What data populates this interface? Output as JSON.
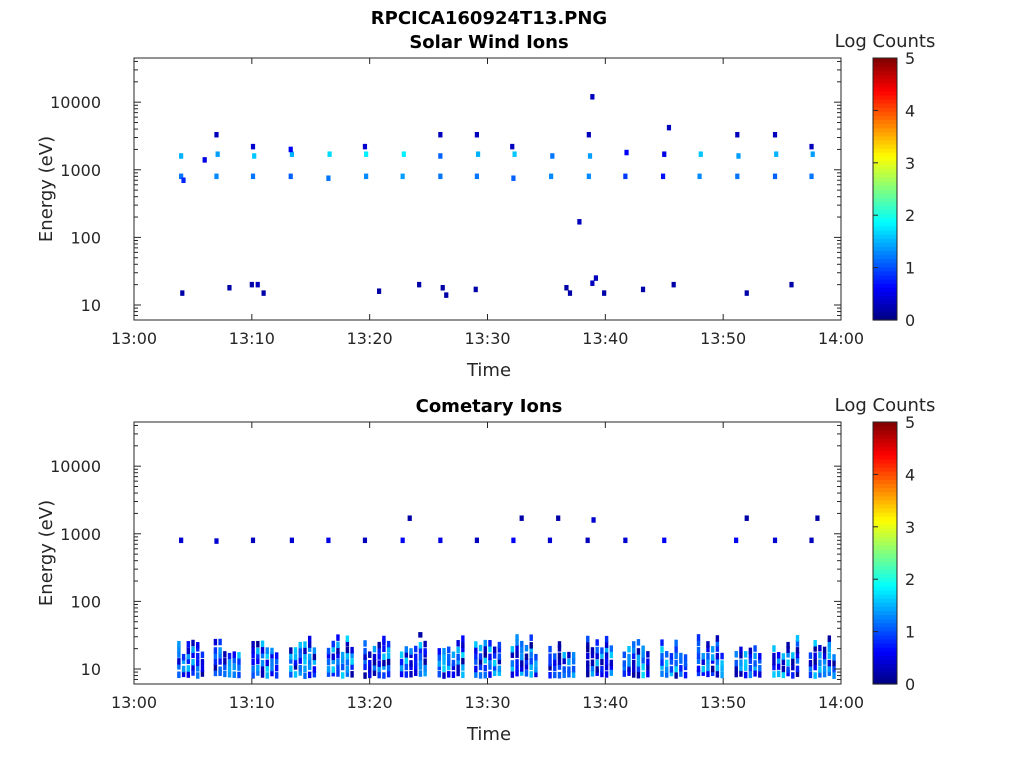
{
  "figure_title": "RPCICA160924T13.PNG",
  "colors": {
    "colormap": [
      "#00007f",
      "#0000ff",
      "#007fff",
      "#00ffff",
      "#7fff7f",
      "#ffff00",
      "#ff7f00",
      "#ff0000",
      "#7f0000"
    ],
    "axes": "#262626"
  },
  "chart_data": [
    {
      "type": "heatmap",
      "title": "Solar Wind Ions",
      "xlabel": "Time",
      "ylabel": "Energy (eV)",
      "x_ticks": [
        "13:00",
        "13:10",
        "13:20",
        "13:30",
        "13:40",
        "13:50",
        "14:00"
      ],
      "xlim_minutes": [
        0,
        60
      ],
      "y_ticks": [
        "10",
        "100",
        "1000",
        "10000"
      ],
      "ylim": [
        6,
        45000
      ],
      "y_scale": "log",
      "colorbar": {
        "label": "Log Counts",
        "ticks": [
          "0",
          "1",
          "2",
          "3",
          "4",
          "5"
        ],
        "range": [
          0,
          5
        ]
      },
      "bursts_minutes": [
        3.8,
        6.9,
        10.1,
        13.3,
        16.5,
        19.6,
        22.7,
        25.9,
        29.0,
        32.1,
        35.3,
        38.5,
        41.6,
        44.8,
        47.9,
        51.1,
        54.3,
        57.4
      ],
      "cells": [
        [
          4.0,
          800,
          1.2
        ],
        [
          4.2,
          700,
          0.8
        ],
        [
          4.0,
          1600,
          1.5
        ],
        [
          7.0,
          800,
          1.3
        ],
        [
          7.1,
          1700,
          1.4
        ],
        [
          7.0,
          3300,
          0.3
        ],
        [
          6.0,
          1400,
          0.5
        ],
        [
          10.1,
          800,
          1.2
        ],
        [
          10.2,
          1600,
          1.6
        ],
        [
          10.1,
          2200,
          0.4
        ],
        [
          13.3,
          800,
          1.1
        ],
        [
          13.4,
          1700,
          1.5
        ],
        [
          13.3,
          2000,
          0.6
        ],
        [
          16.5,
          750,
          1.2
        ],
        [
          16.6,
          1700,
          1.7
        ],
        [
          19.7,
          800,
          1.3
        ],
        [
          19.7,
          1700,
          1.8
        ],
        [
          19.6,
          2200,
          0.4
        ],
        [
          22.8,
          800,
          1.4
        ],
        [
          22.9,
          1700,
          1.8
        ],
        [
          26.0,
          800,
          1.2
        ],
        [
          26.0,
          1600,
          1.1
        ],
        [
          26.0,
          3300,
          0.3
        ],
        [
          29.1,
          800,
          1.2
        ],
        [
          29.2,
          1700,
          1.5
        ],
        [
          29.1,
          3300,
          0.3
        ],
        [
          32.2,
          750,
          1.1
        ],
        [
          32.3,
          1700,
          1.6
        ],
        [
          32.1,
          2200,
          0.3
        ],
        [
          35.4,
          800,
          1.3
        ],
        [
          35.5,
          1600,
          1.2
        ],
        [
          38.6,
          800,
          1.3
        ],
        [
          38.7,
          1600,
          1.4
        ],
        [
          38.6,
          3300,
          0.3
        ],
        [
          38.9,
          12000,
          0.3
        ],
        [
          41.7,
          800,
          0.9
        ],
        [
          41.8,
          1800,
          0.6
        ],
        [
          44.9,
          800,
          0.7
        ],
        [
          45.0,
          1700,
          0.5
        ],
        [
          45.4,
          4200,
          0.3
        ],
        [
          48.0,
          800,
          1.3
        ],
        [
          48.1,
          1700,
          1.6
        ],
        [
          51.2,
          800,
          1.2
        ],
        [
          51.3,
          1600,
          1.4
        ],
        [
          51.2,
          3300,
          0.3
        ],
        [
          54.4,
          800,
          1.1
        ],
        [
          54.5,
          1700,
          1.5
        ],
        [
          54.4,
          3300,
          0.3
        ],
        [
          57.5,
          800,
          1.2
        ],
        [
          57.6,
          1700,
          1.4
        ],
        [
          57.5,
          2200,
          0.3
        ],
        [
          37.8,
          170,
          0.3
        ],
        [
          4.1,
          15,
          0.2
        ],
        [
          8.1,
          18,
          0.2
        ],
        [
          10.0,
          20,
          0.2
        ],
        [
          10.5,
          20,
          0.3
        ],
        [
          11.0,
          15,
          0.2
        ],
        [
          20.8,
          16,
          0.2
        ],
        [
          24.2,
          20,
          0.2
        ],
        [
          26.2,
          18,
          0.2
        ],
        [
          26.5,
          14,
          0.2
        ],
        [
          29.0,
          17,
          0.2
        ],
        [
          36.7,
          18,
          0.2
        ],
        [
          37.0,
          15,
          0.2
        ],
        [
          38.9,
          21,
          0.3
        ],
        [
          39.2,
          25,
          0.3
        ],
        [
          39.9,
          15,
          0.2
        ],
        [
          43.2,
          17,
          0.2
        ],
        [
          45.8,
          20,
          0.2
        ],
        [
          52.0,
          15,
          0.2
        ],
        [
          55.8,
          20,
          0.2
        ]
      ]
    },
    {
      "type": "heatmap",
      "title": "Cometary Ions",
      "xlabel": "Time",
      "ylabel": "Energy (eV)",
      "x_ticks": [
        "13:00",
        "13:10",
        "13:20",
        "13:30",
        "13:40",
        "13:50",
        "14:00"
      ],
      "xlim_minutes": [
        0,
        60
      ],
      "y_ticks": [
        "10",
        "100",
        "1000",
        "10000"
      ],
      "ylim": [
        6,
        45000
      ],
      "y_scale": "log",
      "colorbar": {
        "label": "Log Counts",
        "ticks": [
          "0",
          "1",
          "2",
          "3",
          "4",
          "5"
        ],
        "range": [
          0,
          5
        ]
      },
      "bursts_minutes": [
        3.8,
        6.9,
        10.1,
        13.3,
        16.5,
        19.6,
        22.7,
        25.9,
        29.0,
        32.1,
        35.3,
        38.5,
        41.6,
        44.8,
        47.9,
        51.1,
        54.3,
        57.4
      ],
      "cells": [
        [
          4.0,
          800,
          0.4
        ],
        [
          7.0,
          780,
          0.4
        ],
        [
          10.1,
          800,
          0.3
        ],
        [
          13.4,
          800,
          0.4
        ],
        [
          16.5,
          800,
          0.5
        ],
        [
          19.6,
          800,
          0.3
        ],
        [
          22.8,
          800,
          0.6
        ],
        [
          26.0,
          800,
          0.5
        ],
        [
          29.1,
          800,
          0.3
        ],
        [
          32.2,
          800,
          0.6
        ],
        [
          35.3,
          800,
          0.4
        ],
        [
          38.5,
          800,
          0.3
        ],
        [
          41.7,
          800,
          0.4
        ],
        [
          45.0,
          800,
          0.6
        ],
        [
          51.1,
          800,
          0.6
        ],
        [
          54.4,
          800,
          0.4
        ],
        [
          57.5,
          800,
          0.3
        ],
        [
          23.4,
          1700,
          0.2
        ],
        [
          32.9,
          1700,
          0.2
        ],
        [
          36.0,
          1700,
          0.2
        ],
        [
          39.0,
          1600,
          0.4
        ],
        [
          52.0,
          1700,
          0.2
        ],
        [
          58.0,
          1700,
          0.2
        ],
        [
          24.3,
          32,
          0.2
        ]
      ]
    }
  ]
}
